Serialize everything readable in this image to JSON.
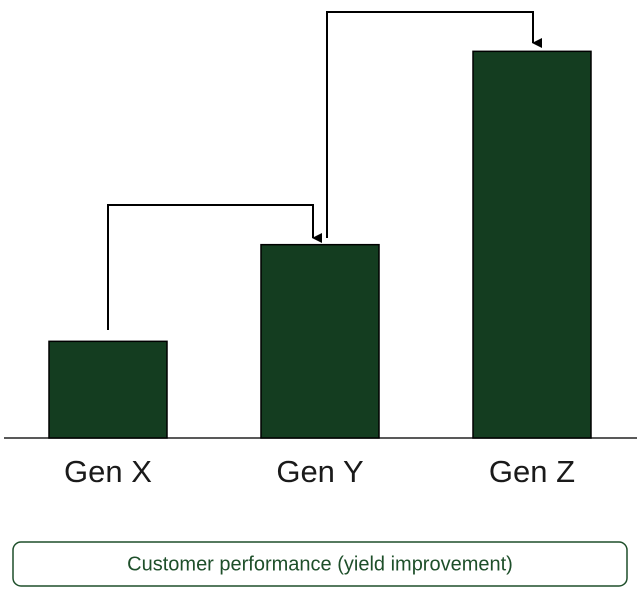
{
  "chart_data": {
    "type": "bar",
    "categories": [
      "Gen X",
      "Gen Y",
      "Gen Z"
    ],
    "values": [
      1,
      2,
      4
    ],
    "color": "#143d20",
    "ylim": [
      0,
      4.5
    ],
    "caption": "Customer performance (yield improvement)"
  }
}
